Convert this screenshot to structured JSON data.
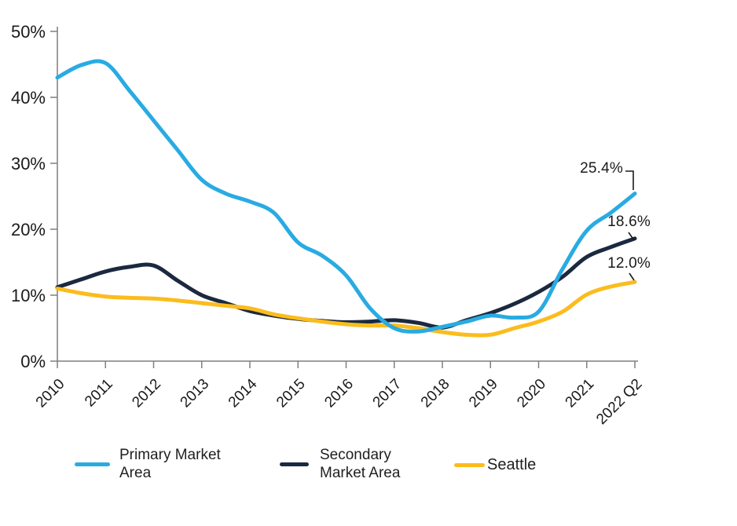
{
  "chart_data": {
    "type": "line",
    "title": "",
    "xlabel": "",
    "ylabel": "",
    "categories": [
      "2010",
      "2011",
      "2012",
      "2013",
      "2014",
      "2015",
      "2016",
      "2017",
      "2018",
      "2019",
      "2020",
      "2021",
      "2022 Q2"
    ],
    "y_ticks": {
      "values": [
        0,
        10,
        20,
        30,
        40,
        50
      ],
      "labels": [
        "0%",
        "10%",
        "20%",
        "30%",
        "40%",
        "50%"
      ]
    },
    "ylim": [
      0,
      50
    ],
    "grid": false,
    "legend_position": "bottom",
    "axis_color": "#7f7f7f",
    "text_color": "#1a1a1a",
    "x_index": [
      0,
      0.5,
      1,
      1.5,
      2,
      2.5,
      3,
      3.5,
      4,
      4.5,
      5,
      5.5,
      6,
      6.5,
      7,
      7.5,
      8,
      8.5,
      9,
      9.5,
      10,
      10.5,
      11,
      11.5,
      12
    ],
    "series": [
      {
        "name": "Primary Market Area",
        "legend_lines": [
          "Primary Market",
          "Area"
        ],
        "color": "#29ABE2",
        "end_label": "25.4%",
        "end_value": 25.4,
        "values": [
          43.0,
          44.9,
          45.2,
          41.0,
          36.5,
          32.0,
          27.5,
          25.4,
          24.2,
          22.5,
          18.0,
          16.0,
          13.0,
          8.0,
          5.0,
          4.5,
          5.2,
          6.0,
          6.9,
          6.6,
          7.5,
          14.0,
          19.8,
          22.5,
          25.4
        ]
      },
      {
        "name": "Secondary Market Area",
        "legend_lines": [
          "Secondary",
          "Market Area"
        ],
        "color": "#1B2940",
        "end_label": "18.6%",
        "end_value": 18.6,
        "values": [
          11.2,
          12.4,
          13.6,
          14.3,
          14.5,
          12.2,
          10.0,
          8.8,
          7.6,
          6.9,
          6.4,
          6.1,
          5.9,
          6.0,
          6.2,
          5.8,
          5.1,
          6.2,
          7.3,
          8.7,
          10.5,
          12.8,
          15.8,
          17.3,
          18.6
        ]
      },
      {
        "name": "Seattle",
        "legend_lines": [
          "Seattle"
        ],
        "color": "#FBBC1C",
        "end_label": "12.0%",
        "end_value": 12.0,
        "values": [
          11.0,
          10.3,
          9.8,
          9.6,
          9.5,
          9.2,
          8.8,
          8.4,
          8.0,
          7.1,
          6.5,
          6.0,
          5.6,
          5.4,
          5.4,
          5.0,
          4.4,
          4.0,
          4.0,
          5.0,
          6.0,
          7.5,
          10.1,
          11.3,
          12.0
        ]
      }
    ]
  }
}
